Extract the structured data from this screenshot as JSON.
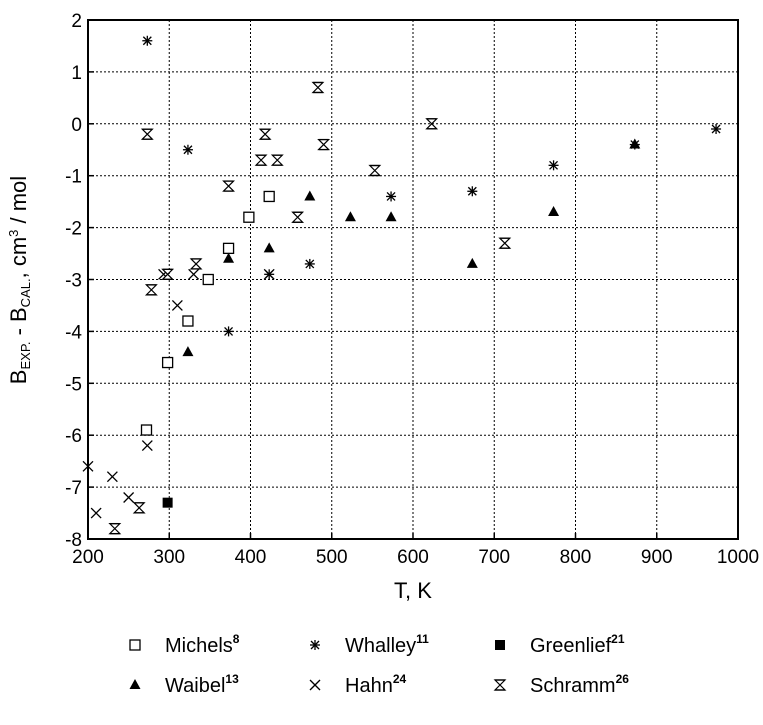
{
  "chart_data": {
    "type": "scatter",
    "xlabel": "T, K",
    "ylabel": {
      "main": "B",
      "sub1": "EXP.",
      "mid": " - B",
      "sub2": "CAL.",
      "tail": ", cm",
      "sup": "3",
      "end": " / mol"
    },
    "xlim": [
      200,
      1000
    ],
    "ylim": [
      -8,
      2
    ],
    "xticks": [
      "200",
      "300",
      "400",
      "500",
      "600",
      "700",
      "800",
      "900",
      "1000"
    ],
    "yticks": [
      "2",
      "1",
      "0",
      "-1",
      "-2",
      "-3",
      "-4",
      "-5",
      "-6",
      "-7",
      "-8"
    ],
    "grid": true,
    "legend_position": "bottom",
    "series": [
      {
        "name": "Michels",
        "ref": "8",
        "marker": "open-square",
        "points": [
          [
            272,
            -5.9
          ],
          [
            298,
            -4.6
          ],
          [
            323,
            -3.8
          ],
          [
            348,
            -3.0
          ],
          [
            373,
            -2.4
          ],
          [
            398,
            -1.8
          ],
          [
            423,
            -1.4
          ]
        ]
      },
      {
        "name": "Whalley",
        "ref": "11",
        "marker": "asterisk",
        "points": [
          [
            273,
            1.6
          ],
          [
            323,
            -0.5
          ],
          [
            373,
            -4.0
          ],
          [
            423,
            -2.9
          ],
          [
            473,
            -2.7
          ],
          [
            573,
            -1.4
          ],
          [
            673,
            -1.3
          ],
          [
            773,
            -0.8
          ],
          [
            873,
            -0.4
          ],
          [
            973,
            -0.1
          ]
        ]
      },
      {
        "name": "Greenlief",
        "ref": "21",
        "marker": "filled-square",
        "points": [
          [
            298,
            -7.3
          ]
        ]
      },
      {
        "name": "Waibel",
        "ref": "13",
        "marker": "filled-triangle",
        "points": [
          [
            323,
            -4.4
          ],
          [
            373,
            -2.6
          ],
          [
            423,
            -2.4
          ],
          [
            473,
            -1.4
          ],
          [
            523,
            -1.8
          ],
          [
            573,
            -1.8
          ],
          [
            673,
            -2.7
          ],
          [
            773,
            -1.7
          ],
          [
            873,
            -0.4
          ]
        ]
      },
      {
        "name": "Hahn",
        "ref": "24",
        "marker": "x",
        "points": [
          [
            200,
            -6.6
          ],
          [
            210,
            -7.5
          ],
          [
            230,
            -6.8
          ],
          [
            250,
            -7.2
          ],
          [
            273,
            -6.2
          ],
          [
            293,
            -2.9
          ],
          [
            310,
            -3.5
          ],
          [
            330,
            -2.9
          ],
          [
            423,
            -2.9
          ]
        ]
      },
      {
        "name": "Schramm",
        "ref": "26",
        "marker": "hourglass",
        "points": [
          [
            263,
            -7.4
          ],
          [
            233,
            -7.8
          ],
          [
            273,
            -0.2
          ],
          [
            278,
            -3.2
          ],
          [
            298,
            -2.9
          ],
          [
            333,
            -2.7
          ],
          [
            373,
            -1.2
          ],
          [
            413,
            -0.7
          ],
          [
            418,
            -0.2
          ],
          [
            433,
            -0.7
          ],
          [
            458,
            -1.8
          ],
          [
            483,
            0.7
          ],
          [
            490,
            -0.4
          ],
          [
            553,
            -0.9
          ],
          [
            623,
            0.0
          ],
          [
            713,
            -2.3
          ]
        ]
      }
    ]
  }
}
